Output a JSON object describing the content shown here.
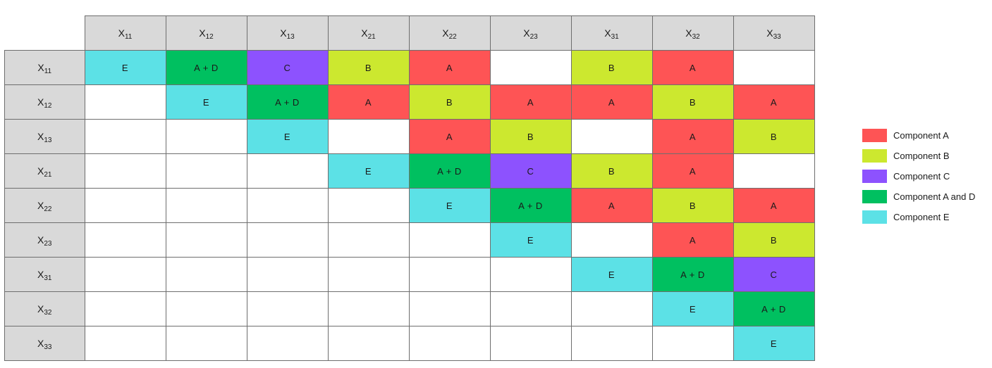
{
  "matrix": {
    "var_base": "X",
    "columns": [
      "11",
      "12",
      "13",
      "21",
      "22",
      "23",
      "31",
      "32",
      "33"
    ],
    "rows": [
      {
        "sub": "11",
        "cells": [
          "E",
          "A + D",
          "C",
          "B",
          "A",
          "",
          "B",
          "A",
          ""
        ]
      },
      {
        "sub": "12",
        "cells": [
          "",
          "E",
          "A + D",
          "A",
          "B",
          "A",
          "A",
          "B",
          "A"
        ]
      },
      {
        "sub": "13",
        "cells": [
          "",
          "",
          "E",
          "",
          "A",
          "B",
          "",
          "A",
          "B"
        ]
      },
      {
        "sub": "21",
        "cells": [
          "",
          "",
          "",
          "E",
          "A + D",
          "C",
          "B",
          "A",
          ""
        ]
      },
      {
        "sub": "22",
        "cells": [
          "",
          "",
          "",
          "",
          "E",
          "A + D",
          "A",
          "B",
          "A"
        ]
      },
      {
        "sub": "23",
        "cells": [
          "",
          "",
          "",
          "",
          "",
          "E",
          "",
          "A",
          "B"
        ]
      },
      {
        "sub": "31",
        "cells": [
          "",
          "",
          "",
          "",
          "",
          "",
          "E",
          "A + D",
          "C"
        ]
      },
      {
        "sub": "32",
        "cells": [
          "",
          "",
          "",
          "",
          "",
          "",
          "",
          "E",
          "A + D"
        ]
      },
      {
        "sub": "33",
        "cells": [
          "",
          "",
          "",
          "",
          "",
          "",
          "",
          "",
          "E"
        ]
      }
    ]
  },
  "colors": {
    "A": "#fe5455",
    "B": "#cce82f",
    "C": "#8d52fe",
    "A + D": "#00c060",
    "E": "#5ce1e6",
    "header": "#d9d9d9"
  },
  "legend": [
    {
      "key": "A",
      "label": "Component A"
    },
    {
      "key": "B",
      "label": "Component B"
    },
    {
      "key": "C",
      "label": "Component C"
    },
    {
      "key": "A + D",
      "label": "Component A and D"
    },
    {
      "key": "E",
      "label": "Component E"
    }
  ]
}
